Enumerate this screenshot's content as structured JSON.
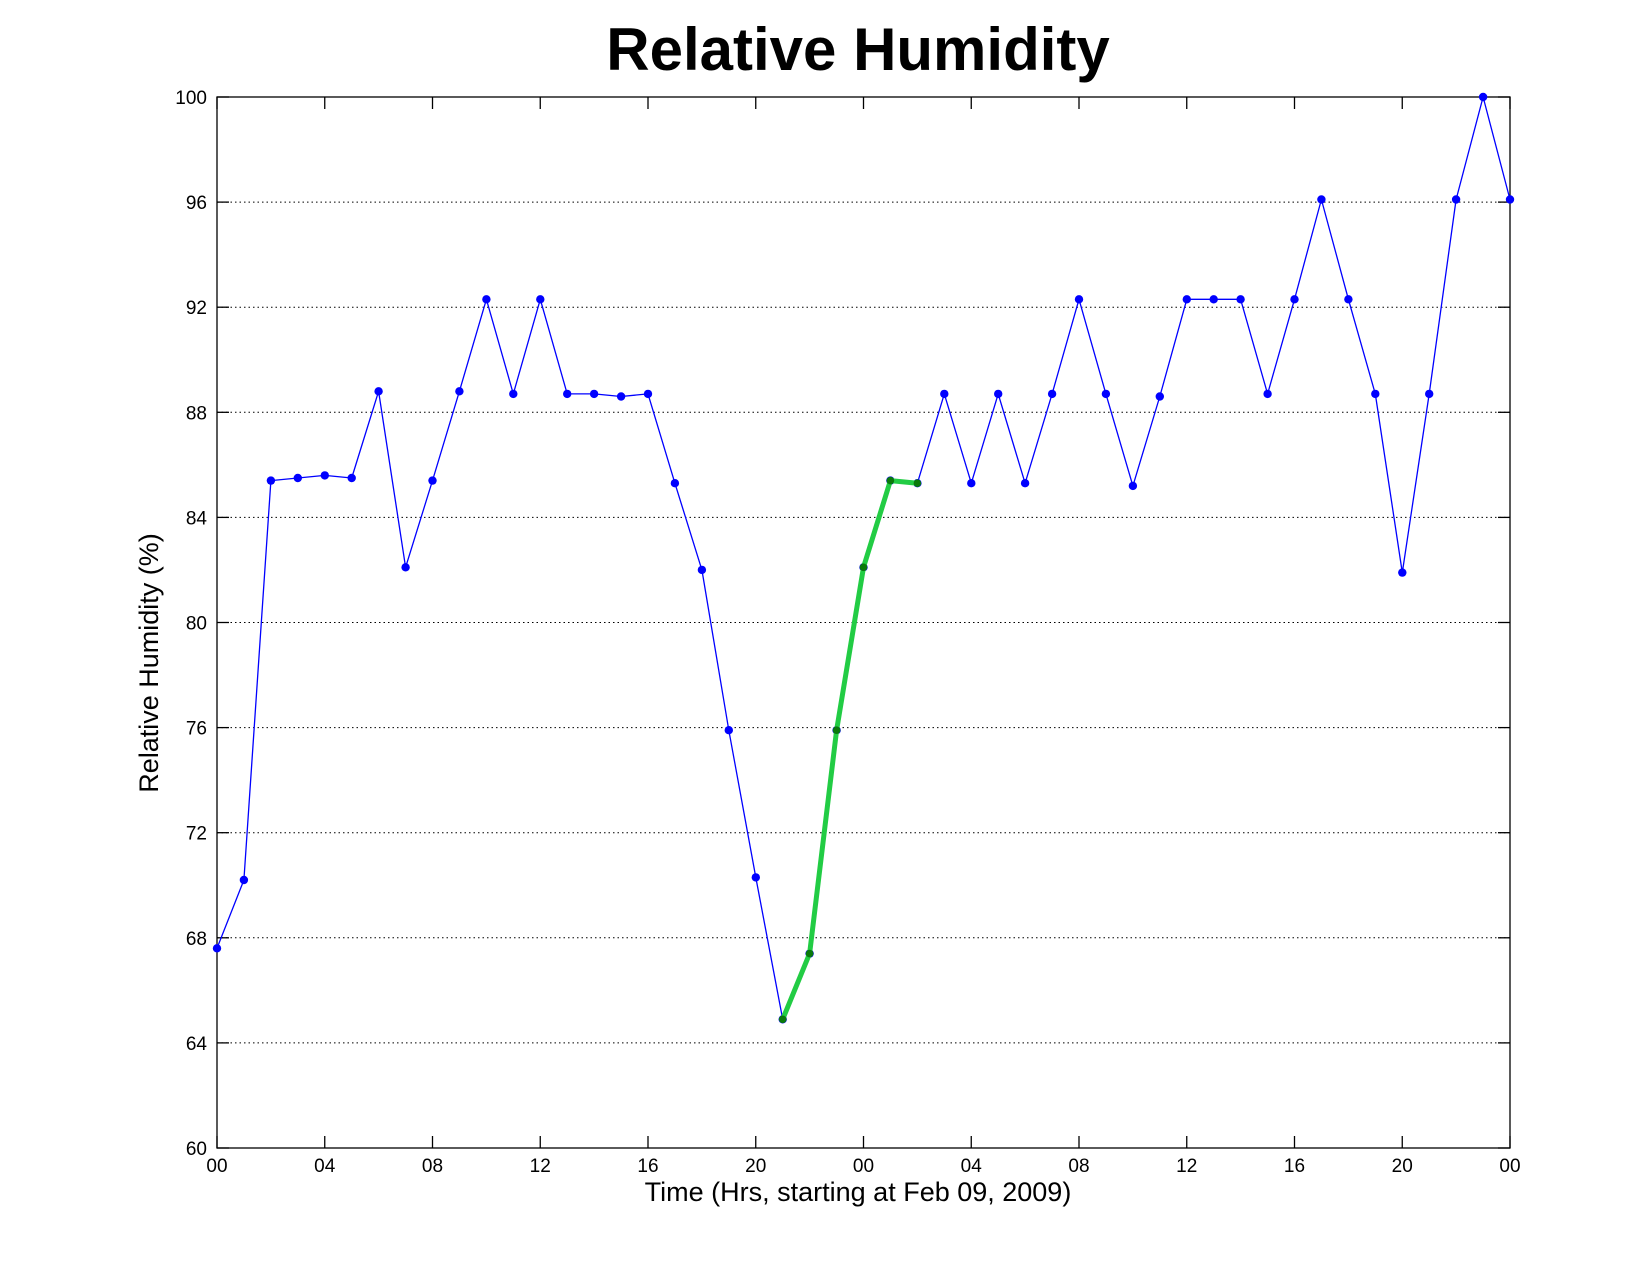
{
  "chart_data": {
    "type": "line",
    "title": "Relative Humidity",
    "xlabel": "Time (Hrs, starting at Feb 09, 2009)",
    "ylabel": "Relative Humidity (%)",
    "ylim": [
      60,
      100
    ],
    "xlim": [
      0,
      48
    ],
    "grid": "horizontal dotted",
    "x_ticks": [
      0,
      4,
      8,
      12,
      16,
      20,
      24,
      28,
      32,
      36,
      40,
      44,
      48
    ],
    "x_tick_labels": [
      "00",
      "04",
      "08",
      "12",
      "16",
      "20",
      "00",
      "04",
      "08",
      "12",
      "16",
      "20",
      "00"
    ],
    "y_ticks": [
      60,
      64,
      68,
      72,
      76,
      80,
      84,
      88,
      92,
      96,
      100
    ],
    "y_tick_labels": [
      "60",
      "64",
      "68",
      "72",
      "76",
      "80",
      "84",
      "88",
      "92",
      "96",
      "100"
    ],
    "series": [
      {
        "color": "#0000ff",
        "marker_color": "#0000ff",
        "line_width": "thin",
        "x": [
          0,
          1,
          2,
          3,
          4,
          5,
          6,
          7,
          8,
          9,
          10,
          11,
          12,
          13,
          14,
          15,
          16,
          17,
          18,
          19,
          20,
          21,
          22,
          23,
          24,
          25,
          26,
          27,
          28,
          29,
          30,
          31,
          32,
          33,
          34,
          35,
          36,
          37,
          38,
          39,
          40,
          41,
          42,
          43,
          44,
          45,
          46,
          47,
          48
        ],
        "values": [
          67.6,
          70.2,
          85.4,
          85.5,
          85.6,
          85.5,
          88.8,
          82.1,
          85.4,
          88.8,
          92.3,
          88.7,
          92.3,
          88.7,
          88.7,
          88.6,
          88.7,
          85.3,
          82.0,
          75.9,
          70.3,
          64.9,
          67.4,
          75.9,
          82.1,
          85.4,
          85.3,
          88.7,
          85.3,
          88.7,
          85.3,
          88.7,
          92.3,
          88.7,
          85.2,
          88.6,
          92.3,
          92.3,
          92.3,
          88.7,
          92.3,
          96.1,
          92.3,
          88.7,
          81.9,
          88.7,
          96.1,
          100.0,
          96.1
        ]
      },
      {
        "color": "#22cc44",
        "marker_color": "#0a7a0a",
        "line_width": "thick",
        "x": [
          21,
          22,
          23,
          24,
          25,
          26
        ],
        "values": [
          64.9,
          67.4,
          75.9,
          82.1,
          85.4,
          85.3
        ]
      }
    ]
  }
}
